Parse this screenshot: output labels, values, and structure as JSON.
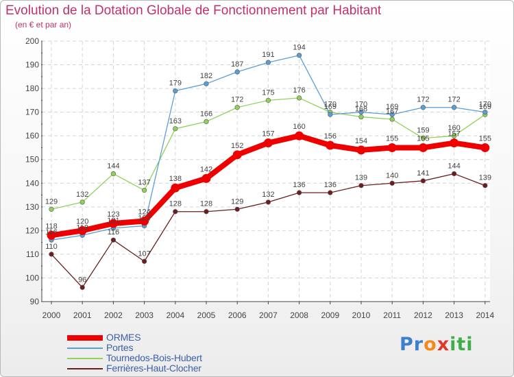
{
  "header": {
    "title": "Evolution de la Dotation Globale de Fonctionnement par Habitant",
    "subtitle": "(en € et par an)"
  },
  "logo": {
    "text": "Proxiti",
    "letters": [
      {
        "ch": "P",
        "color": "#3a7fd0"
      },
      {
        "ch": "r",
        "color": "#3a7fd0"
      },
      {
        "ch": "o",
        "color": "#f28a1c"
      },
      {
        "ch": "x",
        "color": "#e0382c"
      },
      {
        "ch": "i",
        "color": "#3fae49"
      },
      {
        "ch": "t",
        "color": "#3fae49"
      },
      {
        "ch": "i",
        "color": "#3fae49"
      }
    ]
  },
  "chart_data": {
    "type": "line",
    "x": [
      "2000",
      "2001",
      "2002",
      "2003",
      "2004",
      "2005",
      "2006",
      "2007",
      "2008",
      "2009",
      "2010",
      "2011",
      "2012",
      "2013",
      "2014"
    ],
    "ylim": [
      90,
      200
    ],
    "yticks": [
      "90",
      "100",
      "110",
      "120",
      "130",
      "140",
      "150",
      "160",
      "170",
      "180",
      "190",
      "200"
    ],
    "grid": true,
    "legend_position": "bottom-left",
    "series": [
      {
        "name": "ORMES",
        "color": "#ee0000",
        "values": [
          118,
          120,
          123,
          124,
          138,
          142,
          152,
          157,
          160,
          156,
          154,
          155,
          155,
          157,
          155
        ]
      },
      {
        "name": "Portes",
        "color": "#5a9ed6",
        "values": [
          116,
          118,
          121,
          122,
          179,
          182,
          187,
          191,
          194,
          169,
          170,
          169,
          172,
          172,
          170
        ]
      },
      {
        "name": "Tournedos-Bois-Hubert",
        "color": "#8fd25a",
        "values": [
          129,
          132,
          144,
          137,
          163,
          166,
          172,
          175,
          176,
          170,
          168,
          167,
          159,
          160,
          169
        ]
      },
      {
        "name": "Ferrières-Haut-Clocher",
        "color": "#6b1e1e",
        "values": [
          110,
          96,
          116,
          107,
          128,
          128,
          129,
          132,
          136,
          136,
          139,
          140,
          141,
          144,
          139
        ]
      }
    ]
  }
}
